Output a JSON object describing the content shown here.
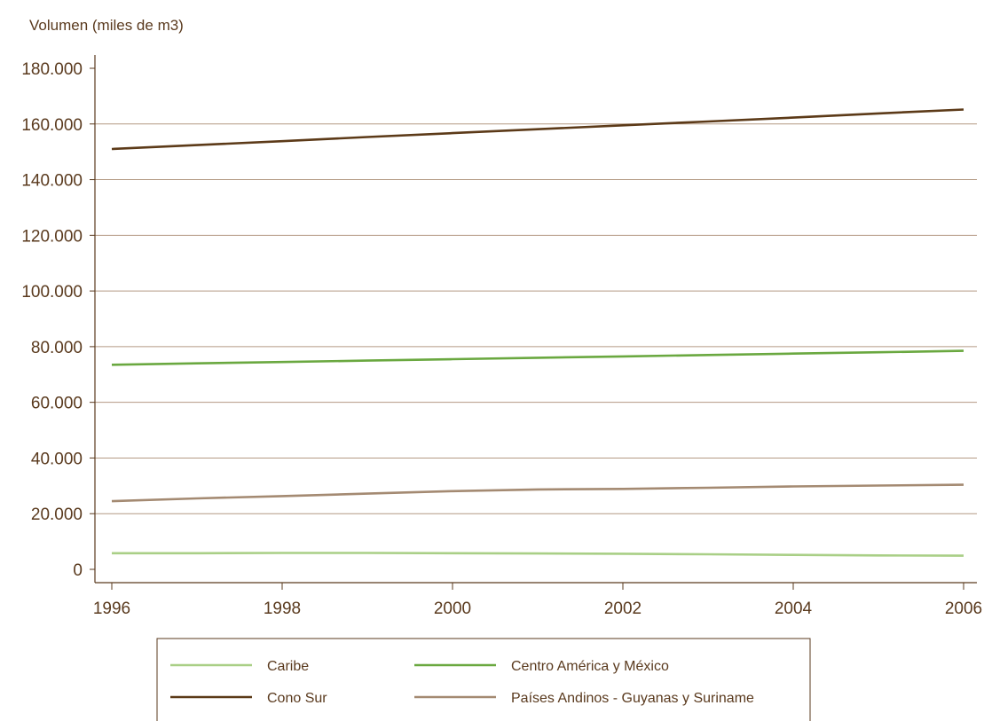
{
  "chart_data": {
    "type": "line",
    "title": "",
    "ylabel": "Volumen (miles de m3)",
    "xlabel": "",
    "xlim": [
      1996,
      2006
    ],
    "ylim": [
      0,
      180000
    ],
    "x_ticks": [
      1996,
      1998,
      2000,
      2002,
      2004,
      2006
    ],
    "x_tick_labels": [
      "1996",
      "1998",
      "2000",
      "2002",
      "2004",
      "2006"
    ],
    "y_ticks": [
      0,
      20000,
      40000,
      60000,
      80000,
      100000,
      120000,
      140000,
      160000,
      180000
    ],
    "y_tick_labels": [
      "0",
      "20.000",
      "40.000",
      "60.000",
      "80.000",
      "100.000",
      "120.000",
      "140.000",
      "160.000",
      "180.000"
    ],
    "grid": "horizontal",
    "legend_position": "bottom",
    "x": [
      1996,
      1997,
      1998,
      1999,
      2000,
      2001,
      2002,
      2003,
      2004,
      2005,
      2006
    ],
    "series": [
      {
        "name": "Caribe",
        "color": "#a9cf86",
        "values": [
          5800,
          5800,
          5900,
          5900,
          5800,
          5700,
          5600,
          5400,
          5200,
          5000,
          4900
        ]
      },
      {
        "name": "Centro América y México",
        "color": "#6aa840",
        "values": [
          73500,
          74000,
          74500,
          75000,
          75500,
          76000,
          76500,
          77000,
          77500,
          78000,
          78500
        ]
      },
      {
        "name": "Cono Sur",
        "color": "#5c3a18",
        "values": [
          151000,
          152400,
          153800,
          155300,
          156700,
          158100,
          159500,
          160900,
          162300,
          163800,
          165200
        ]
      },
      {
        "name": "Países Andinos - Guyanas y Suriname",
        "color": "#a48a72",
        "values": [
          24500,
          25500,
          26300,
          27200,
          28100,
          28700,
          28900,
          29300,
          29800,
          30100,
          30400
        ]
      }
    ]
  }
}
